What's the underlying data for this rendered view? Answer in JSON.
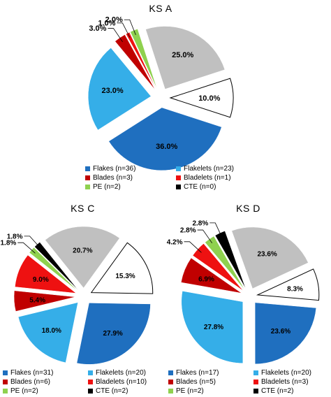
{
  "colors": {
    "flakes": "#1f6fbf",
    "flakelets": "#35aee8",
    "blades": "#c00000",
    "bladelets": "#ee1111",
    "pe": "#8fd14f",
    "cte": "#000000",
    "grey": "#c0c0c0",
    "white": "#ffffff"
  },
  "chart_data": [
    {
      "type": "pie",
      "title": "KS A",
      "slices": [
        {
          "label": "Flakes (n=36)",
          "value": 36.0,
          "text": "36.0%",
          "color": "flakes"
        },
        {
          "label": "Flakelets (n=23)",
          "value": 23.0,
          "text": "23.0%",
          "color": "flakelets"
        },
        {
          "label": "Blades (n=3)",
          "value": 3.0,
          "text": "3.0%",
          "color": "blades"
        },
        {
          "label": "Bladelets (n=1)",
          "value": 1.0,
          "text": "1.0%",
          "color": "bladelets"
        },
        {
          "label": "PE (n=2)",
          "value": 2.0,
          "text": "2.0%",
          "color": "pe"
        },
        {
          "label": "",
          "value": 25.0,
          "text": "25.0%",
          "color": "grey"
        },
        {
          "label": "",
          "value": 10.0,
          "text": "10.0%",
          "color": "white"
        }
      ],
      "legend": [
        {
          "text": "Flakes (n=36)",
          "color": "flakes"
        },
        {
          "text": "Flakelets (n=23)",
          "color": "flakelets"
        },
        {
          "text": "Blades (n=3)",
          "color": "blades"
        },
        {
          "text": "Bladelets (n=1)",
          "color": "bladelets"
        },
        {
          "text": "PE (n=2)",
          "color": "pe"
        },
        {
          "text": "CTE (n=0)",
          "color": "cte"
        }
      ]
    },
    {
      "type": "pie",
      "title": "KS C",
      "slices": [
        {
          "label": "Flakes (n=31)",
          "value": 27.9,
          "text": "27.9%",
          "color": "flakes"
        },
        {
          "label": "Flakelets (n=20)",
          "value": 18.0,
          "text": "18.0%",
          "color": "flakelets"
        },
        {
          "label": "Blades (n=6)",
          "value": 5.4,
          "text": "5.4%",
          "color": "blades"
        },
        {
          "label": "Bladelets (n=10)",
          "value": 9.0,
          "text": "9.0%",
          "color": "bladelets"
        },
        {
          "label": "PE (n=2)",
          "value": 1.8,
          "text": "1.8%",
          "color": "pe"
        },
        {
          "label": "CTE (n=2)",
          "value": 1.8,
          "text": "1.8%",
          "color": "cte"
        },
        {
          "label": "",
          "value": 20.7,
          "text": "20.7%",
          "color": "grey"
        },
        {
          "label": "",
          "value": 15.3,
          "text": "15.3%",
          "color": "white"
        }
      ],
      "legend": [
        {
          "text": "Flakes (n=31)",
          "color": "flakes"
        },
        {
          "text": "Flakelets (n=20)",
          "color": "flakelets"
        },
        {
          "text": "Blades (n=6)",
          "color": "blades"
        },
        {
          "text": "Bladelets (n=10)",
          "color": "bladelets"
        },
        {
          "text": "PE (n=2)",
          "color": "pe"
        },
        {
          "text": "CTE (n=2)",
          "color": "cte"
        }
      ]
    },
    {
      "type": "pie",
      "title": "KS D",
      "slices": [
        {
          "label": "Flakes (n=17)",
          "value": 23.6,
          "text": "23.6%",
          "color": "flakes"
        },
        {
          "label": "Flakelets (n=20)",
          "value": 27.8,
          "text": "27.8%",
          "color": "flakelets"
        },
        {
          "label": "Blades (n=5)",
          "value": 6.9,
          "text": "6.9%",
          "color": "blades"
        },
        {
          "label": "Bladelets (n=3)",
          "value": 4.2,
          "text": "4.2%",
          "color": "bladelets"
        },
        {
          "label": "PE (n=2)",
          "value": 2.8,
          "text": "2.8%",
          "color": "pe"
        },
        {
          "label": "CTE (n=2)",
          "value": 2.8,
          "text": "2.8%",
          "color": "cte"
        },
        {
          "label": "",
          "value": 23.6,
          "text": "23.6%",
          "color": "grey"
        },
        {
          "label": "",
          "value": 8.3,
          "text": "8.3%",
          "color": "white"
        }
      ],
      "legend": [
        {
          "text": "Flakes (n=17)",
          "color": "flakes"
        },
        {
          "text": "Flakelets (n=20)",
          "color": "flakelets"
        },
        {
          "text": "Blades (n=5)",
          "color": "blades"
        },
        {
          "text": "Bladelets (n=3)",
          "color": "bladelets"
        },
        {
          "text": "PE (n=2)",
          "color": "pe"
        },
        {
          "text": "CTE (n=2)",
          "color": "cte"
        }
      ]
    }
  ]
}
